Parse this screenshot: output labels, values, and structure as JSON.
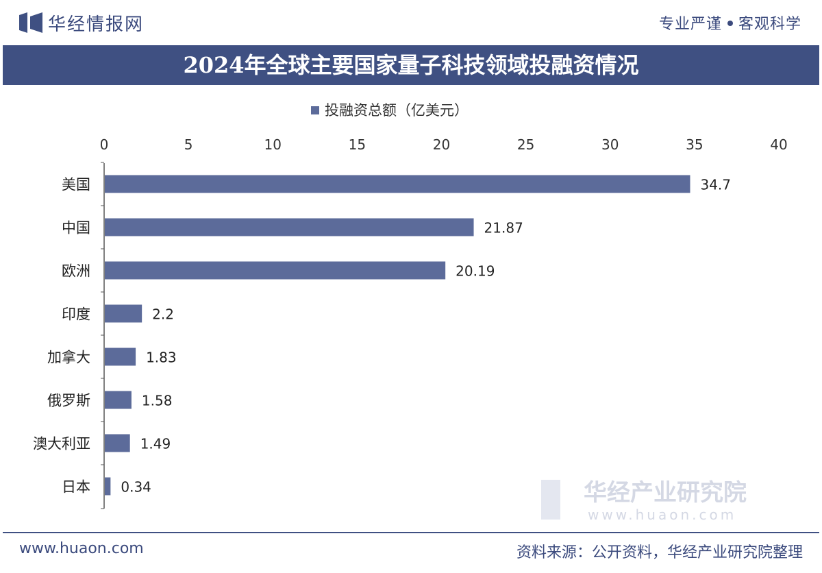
{
  "header": {
    "brand": "华经情报网",
    "tagline_left": "专业严谨",
    "tagline_right": "客观科学"
  },
  "footer": {
    "url": "www.huaon.com",
    "source": "资料来源：公开资料，华经产业研究院整理"
  },
  "watermark": {
    "name": "华经产业研究院",
    "url": "www.huaon.com"
  },
  "colors": {
    "bar": "#5c6b9a",
    "title_bg": "#3f5082",
    "brand": "#3b4a7d"
  },
  "chart_data": {
    "type": "bar",
    "orientation": "horizontal",
    "title": "2024年全球主要国家量子科技领域投融资情况",
    "series": [
      {
        "name": "投融资总额（亿美元）",
        "values": [
          34.7,
          21.87,
          20.19,
          2.2,
          1.83,
          1.58,
          1.49,
          0.34
        ]
      }
    ],
    "categories": [
      "美国",
      "中国",
      "欧洲",
      "印度",
      "加拿大",
      "俄罗斯",
      "澳大利亚",
      "日本"
    ],
    "value_labels": [
      "34.7",
      "21.87",
      "20.19",
      "2.2",
      "1.83",
      "1.58",
      "1.49",
      "0.34"
    ],
    "xlim": [
      0,
      40
    ],
    "x_ticks": [
      0,
      5,
      10,
      15,
      20,
      25,
      30,
      35,
      40
    ],
    "x_axis_position": "top",
    "legend_position": "top",
    "grid": false
  }
}
